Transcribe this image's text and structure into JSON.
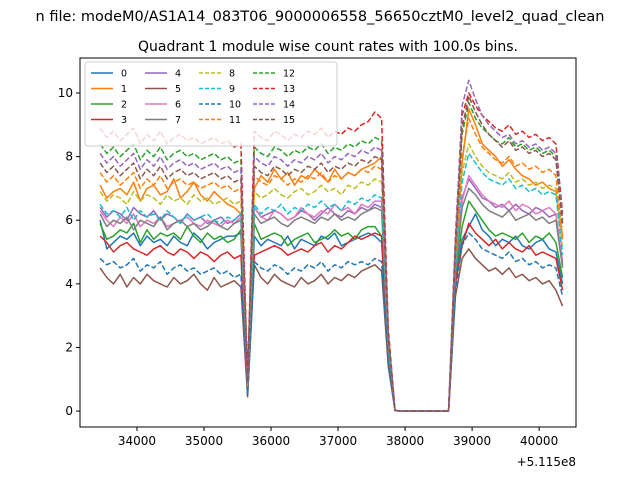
{
  "chart_data": {
    "type": "line",
    "suptitle": "n file: modeM0/AS1A14_083T06_9000006558_56650cztM0_level2_quad_clean",
    "title": "Quadrant 1 module wise count rates with 100.0s bins.",
    "xlabel": "",
    "ylabel": "",
    "offset_label": "+5.115e8",
    "xlim": [
      33150,
      40550
    ],
    "ylim": [
      -0.5,
      11.1
    ],
    "xticks": [
      34000,
      35000,
      36000,
      37000,
      38000,
      39000,
      40000
    ],
    "yticks": [
      0,
      2,
      4,
      6,
      8,
      10
    ],
    "legend_location": "top-left",
    "legend_columns": 4,
    "grid": false,
    "x": [
      33450,
      33550,
      33650,
      33750,
      33850,
      33950,
      34050,
      34150,
      34250,
      34350,
      34450,
      34550,
      34650,
      34750,
      34850,
      34950,
      35050,
      35150,
      35250,
      35350,
      35450,
      35550,
      35650,
      35750,
      35850,
      35950,
      36050,
      36150,
      36250,
      36350,
      36450,
      36550,
      36650,
      36750,
      36850,
      36950,
      37050,
      37150,
      37250,
      37350,
      37450,
      37550,
      37650,
      37750,
      37850,
      37950,
      38050,
      38150,
      38250,
      38350,
      38450,
      38550,
      38650,
      38750,
      38850,
      38950,
      39050,
      39150,
      39250,
      39350,
      39450,
      39550,
      39650,
      39750,
      39850,
      39950,
      40050,
      40150,
      40250,
      40350
    ],
    "series": [
      {
        "name": "0",
        "color": "#1f77b4",
        "dash": false,
        "base": [
          6.0,
          5.1,
          5.3,
          5.5,
          5.4,
          5.6,
          5.2,
          5.5,
          5.3,
          5.4,
          5.2,
          5.5,
          5.3,
          5.2,
          5.6,
          5.4,
          5.1,
          5.3,
          5.4,
          5.5,
          5.5,
          5.6,
          0.5,
          5.5,
          5.2,
          5.4,
          5.3,
          5.2,
          5.5,
          5.1,
          5.4,
          5.3,
          5.2,
          5.5,
          5.4,
          5.6,
          5.2,
          5.3,
          5.4,
          5.5,
          5.6,
          5.5,
          5.3,
          1.8,
          0.02,
          0,
          0,
          0,
          0,
          0,
          0,
          0,
          0,
          4.0,
          5.4,
          5.8,
          6.2,
          5.7,
          5.5,
          5.2,
          5.4,
          5.3,
          5.5,
          5.2,
          5.1,
          5.3,
          5.4,
          5.1,
          5.0,
          4.0
        ]
      },
      {
        "name": "1",
        "color": "#ff7f0e",
        "dash": false,
        "base": [
          7.1,
          6.7,
          6.9,
          7.0,
          6.8,
          7.2,
          6.6,
          7.0,
          7.1,
          6.8,
          6.9,
          7.3,
          6.7,
          6.9,
          7.2,
          6.8,
          6.6,
          6.9,
          6.7,
          6.5,
          6.4,
          6.2,
          0.8,
          7.0,
          7.4,
          7.2,
          7.6,
          7.3,
          7.5,
          7.1,
          7.4,
          7.3,
          7.6,
          7.4,
          7.2,
          7.6,
          7.3,
          7.5,
          7.4,
          7.6,
          7.7,
          7.8,
          8.0,
          2.0,
          0.02,
          0,
          0,
          0,
          0,
          0,
          0,
          0,
          0,
          4.5,
          7.8,
          9.5,
          9.0,
          8.4,
          8.2,
          8.0,
          7.7,
          7.9,
          7.6,
          7.4,
          7.3,
          7.1,
          7.2,
          7.0,
          6.9,
          5.5
        ]
      },
      {
        "name": "2",
        "color": "#2ca02c",
        "dash": false,
        "base": [
          5.9,
          5.4,
          5.5,
          5.7,
          5.6,
          5.9,
          5.3,
          5.7,
          5.4,
          5.6,
          5.5,
          5.6,
          5.4,
          5.8,
          5.5,
          5.3,
          5.6,
          5.4,
          5.5,
          5.3,
          5.4,
          5.7,
          0.6,
          5.9,
          5.4,
          5.5,
          5.6,
          5.5,
          5.2,
          5.4,
          5.5,
          5.6,
          5.3,
          5.4,
          5.5,
          5.7,
          5.5,
          5.6,
          5.4,
          5.7,
          5.8,
          5.8,
          5.5,
          1.9,
          0.02,
          0,
          0,
          0,
          0,
          0,
          0,
          0,
          0,
          4.2,
          5.8,
          6.6,
          6.3,
          6.0,
          5.7,
          5.5,
          5.6,
          5.5,
          5.4,
          5.6,
          5.3,
          5.5,
          5.4,
          5.6,
          5.3,
          4.2
        ]
      },
      {
        "name": "3",
        "color": "#d62728",
        "dash": false,
        "base": [
          5.5,
          5.3,
          5.0,
          5.2,
          5.3,
          5.1,
          5.0,
          4.9,
          5.1,
          5.2,
          5.0,
          4.9,
          5.1,
          5.0,
          4.8,
          5.0,
          4.9,
          4.7,
          4.9,
          5.0,
          4.8,
          4.9,
          0.5,
          4.9,
          5.0,
          5.1,
          5.2,
          5.1,
          4.9,
          5.0,
          5.1,
          5.0,
          5.2,
          5.3,
          5.0,
          5.2,
          5.1,
          5.3,
          5.5,
          5.4,
          5.5,
          5.6,
          5.5,
          1.7,
          0.02,
          0,
          0,
          0,
          0,
          0,
          0,
          0,
          0,
          4.0,
          5.2,
          5.9,
          5.6,
          5.4,
          5.2,
          5.4,
          5.1,
          5.3,
          5.1,
          5.0,
          5.2,
          4.9,
          5.0,
          4.9,
          4.8,
          3.8
        ]
      },
      {
        "name": "4",
        "color": "#9467bd",
        "dash": false,
        "base": [
          6.4,
          6.1,
          6.3,
          6.2,
          6.0,
          6.4,
          6.2,
          6.1,
          6.3,
          6.0,
          6.2,
          6.1,
          5.9,
          6.2,
          6.0,
          6.1,
          5.9,
          6.0,
          6.1,
          5.9,
          6.0,
          6.2,
          0.7,
          6.4,
          6.1,
          6.2,
          6.3,
          6.2,
          6.0,
          6.1,
          6.3,
          6.2,
          6.0,
          6.2,
          6.4,
          6.2,
          6.1,
          6.3,
          6.2,
          6.4,
          6.3,
          6.5,
          6.4,
          2.0,
          0.02,
          0,
          0,
          0,
          0,
          0,
          0,
          0,
          0,
          4.4,
          6.7,
          7.3,
          7.0,
          6.7,
          6.6,
          6.4,
          6.5,
          6.3,
          6.5,
          6.3,
          6.2,
          6.4,
          6.3,
          6.1,
          6.2,
          4.6
        ]
      },
      {
        "name": "5",
        "color": "#8c564b",
        "dash": false,
        "base": [
          4.5,
          4.2,
          4.0,
          4.3,
          3.9,
          4.2,
          4.0,
          4.3,
          4.1,
          4.0,
          3.9,
          4.2,
          4.0,
          4.1,
          4.3,
          4.0,
          3.8,
          4.2,
          3.9,
          4.0,
          4.1,
          3.9,
          0.45,
          4.6,
          4.2,
          4.0,
          4.3,
          4.1,
          4.0,
          3.9,
          4.2,
          4.0,
          4.1,
          4.3,
          4.0,
          4.2,
          4.1,
          4.3,
          4.2,
          4.4,
          4.5,
          4.6,
          4.4,
          1.4,
          0.02,
          0,
          0,
          0,
          0,
          0,
          0,
          0,
          0,
          3.6,
          4.8,
          5.1,
          4.8,
          4.6,
          4.4,
          4.5,
          4.3,
          4.5,
          4.2,
          4.3,
          4.1,
          4.2,
          4.0,
          4.1,
          3.8,
          3.3
        ]
      },
      {
        "name": "6",
        "color": "#e377c2",
        "dash": false,
        "base": [
          6.3,
          6.0,
          5.8,
          6.1,
          5.9,
          6.2,
          5.8,
          6.0,
          5.9,
          6.1,
          5.8,
          5.9,
          6.0,
          6.1,
          5.9,
          5.8,
          6.0,
          5.9,
          5.8,
          6.0,
          5.9,
          6.1,
          0.7,
          6.4,
          6.1,
          6.0,
          6.3,
          6.2,
          6.0,
          6.1,
          6.4,
          6.2,
          6.1,
          6.3,
          6.2,
          6.5,
          6.3,
          6.4,
          6.2,
          6.5,
          6.4,
          6.6,
          6.6,
          2.0,
          0.02,
          0,
          0,
          0,
          0,
          0,
          0,
          0,
          0,
          4.4,
          6.6,
          7.4,
          7.1,
          6.8,
          6.6,
          6.5,
          6.4,
          6.6,
          6.3,
          6.5,
          6.4,
          6.2,
          6.3,
          6.4,
          6.2,
          4.7
        ]
      },
      {
        "name": "7",
        "color": "#7f7f7f",
        "dash": false,
        "base": [
          6.2,
          5.8,
          6.0,
          5.9,
          6.1,
          5.7,
          6.0,
          5.9,
          5.8,
          6.1,
          5.7,
          5.9,
          6.0,
          5.8,
          5.9,
          5.7,
          5.8,
          6.0,
          5.8,
          5.7,
          5.9,
          6.0,
          0.6,
          6.2,
          5.9,
          6.0,
          6.1,
          5.9,
          5.8,
          6.0,
          6.1,
          6.0,
          5.9,
          6.1,
          6.0,
          6.2,
          6.0,
          6.1,
          6.0,
          6.2,
          6.3,
          6.4,
          6.3,
          1.9,
          0.02,
          0,
          0,
          0,
          0,
          0,
          0,
          0,
          0,
          4.3,
          6.4,
          7.0,
          6.8,
          6.5,
          6.3,
          6.2,
          6.1,
          6.3,
          6.0,
          6.1,
          6.2,
          6.0,
          6.1,
          5.9,
          6.0,
          4.5
        ]
      },
      {
        "name": "8",
        "color": "#bcbd22",
        "dash": true,
        "base": [
          6.9,
          6.6,
          6.8,
          6.7,
          6.5,
          6.9,
          6.6,
          6.8,
          6.7,
          6.5,
          6.8,
          6.6,
          6.7,
          6.5,
          6.8,
          6.6,
          6.7,
          6.5,
          6.6,
          6.7,
          6.5,
          6.6,
          0.8,
          6.9,
          6.7,
          6.8,
          7.0,
          6.8,
          6.7,
          6.9,
          7.0,
          6.8,
          6.9,
          7.1,
          6.9,
          7.0,
          6.8,
          7.1,
          7.0,
          7.2,
          7.1,
          7.3,
          7.2,
          2.1,
          0.02,
          0,
          0,
          0,
          0,
          0,
          0,
          0,
          0,
          4.6,
          7.5,
          8.4,
          8.0,
          7.7,
          7.5,
          7.4,
          7.3,
          7.5,
          7.2,
          7.3,
          7.1,
          7.2,
          7.0,
          7.1,
          7.0,
          5.1
        ]
      },
      {
        "name": "9",
        "color": "#17becf",
        "dash": true,
        "base": [
          6.5,
          6.2,
          6.3,
          6.1,
          6.4,
          6.0,
          6.3,
          6.1,
          6.2,
          6.0,
          6.3,
          6.1,
          5.9,
          6.2,
          6.0,
          6.1,
          6.2,
          6.0,
          5.9,
          6.1,
          6.0,
          6.2,
          0.7,
          6.5,
          6.2,
          6.4,
          6.3,
          6.5,
          6.2,
          6.4,
          6.3,
          6.5,
          6.4,
          6.6,
          6.4,
          6.5,
          6.3,
          6.6,
          6.5,
          6.7,
          6.6,
          6.8,
          6.7,
          2.0,
          0.02,
          0,
          0,
          0,
          0,
          0,
          0,
          0,
          0,
          4.5,
          7.2,
          8.1,
          7.8,
          7.5,
          7.3,
          7.2,
          7.1,
          7.3,
          7.0,
          7.1,
          6.9,
          7.0,
          6.8,
          6.9,
          6.8,
          4.9
        ]
      },
      {
        "name": "10",
        "color": "#1f77b4",
        "dash": true,
        "base": [
          4.8,
          4.6,
          4.7,
          4.5,
          4.6,
          4.8,
          4.4,
          4.6,
          4.5,
          4.7,
          4.3,
          4.5,
          4.6,
          4.4,
          4.5,
          4.3,
          4.4,
          4.5,
          4.3,
          4.4,
          4.2,
          4.3,
          0.5,
          4.7,
          4.5,
          4.4,
          4.6,
          4.5,
          4.3,
          4.5,
          4.4,
          4.6,
          4.5,
          4.7,
          4.4,
          4.6,
          4.5,
          4.7,
          4.6,
          4.7,
          4.6,
          4.8,
          4.7,
          1.5,
          0.02,
          0,
          0,
          0,
          0,
          0,
          0,
          0,
          0,
          3.8,
          5.2,
          5.6,
          5.4,
          5.1,
          5.0,
          4.9,
          4.8,
          5.0,
          4.7,
          4.8,
          4.6,
          4.7,
          4.5,
          4.6,
          4.5,
          3.6
        ]
      },
      {
        "name": "11",
        "color": "#ff7f0e",
        "dash": true,
        "base": [
          7.5,
          7.2,
          7.4,
          7.1,
          7.3,
          7.5,
          7.0,
          7.3,
          7.1,
          7.4,
          7.0,
          7.2,
          7.3,
          7.1,
          7.2,
          7.0,
          7.1,
          7.2,
          7.0,
          7.1,
          6.9,
          7.0,
          0.8,
          7.4,
          7.2,
          7.1,
          7.4,
          7.3,
          7.1,
          7.3,
          7.2,
          7.4,
          7.3,
          7.5,
          7.2,
          7.4,
          7.3,
          7.5,
          7.4,
          7.6,
          7.5,
          7.7,
          7.6,
          2.2,
          0.02,
          0,
          0,
          0,
          0,
          0,
          0,
          0,
          0,
          4.8,
          8.0,
          9.2,
          8.7,
          8.3,
          8.1,
          7.9,
          7.8,
          8.0,
          7.7,
          7.8,
          7.6,
          7.7,
          7.5,
          7.6,
          7.4,
          5.4
        ]
      },
      {
        "name": "12",
        "color": "#2ca02c",
        "dash": true,
        "base": [
          8.4,
          8.1,
          8.3,
          8.0,
          8.2,
          8.4,
          7.9,
          8.2,
          8.0,
          8.3,
          7.9,
          8.1,
          8.2,
          8.0,
          8.1,
          7.9,
          8.0,
          8.1,
          7.9,
          8.0,
          7.8,
          7.9,
          0.9,
          8.3,
          8.1,
          8.0,
          8.3,
          8.2,
          8.0,
          8.2,
          8.1,
          8.3,
          8.2,
          8.4,
          8.1,
          8.3,
          8.2,
          8.4,
          8.3,
          8.5,
          8.4,
          8.6,
          8.5,
          2.4,
          0.02,
          0,
          0,
          0,
          0,
          0,
          0,
          0,
          0,
          5.2,
          8.7,
          9.7,
          9.2,
          8.9,
          8.7,
          8.5,
          8.4,
          8.6,
          8.3,
          8.4,
          8.2,
          8.3,
          8.1,
          8.2,
          8.0,
          5.9
        ]
      },
      {
        "name": "13",
        "color": "#d62728",
        "dash": true,
        "base": [
          8.9,
          8.6,
          8.8,
          8.5,
          8.7,
          8.9,
          8.4,
          8.7,
          8.5,
          8.8,
          8.4,
          8.6,
          8.7,
          8.5,
          8.6,
          8.4,
          8.5,
          8.6,
          8.4,
          8.5,
          8.3,
          8.4,
          1.0,
          8.8,
          8.6,
          8.5,
          8.8,
          8.7,
          8.5,
          8.7,
          8.6,
          8.8,
          8.7,
          8.9,
          8.6,
          8.8,
          8.7,
          8.9,
          8.8,
          9.0,
          9.1,
          9.4,
          9.2,
          2.6,
          0.02,
          0,
          0,
          0,
          0,
          0,
          0,
          0,
          0,
          5.5,
          9.3,
          10.0,
          9.6,
          9.3,
          9.1,
          8.9,
          8.8,
          9.0,
          8.7,
          8.8,
          8.6,
          8.7,
          8.5,
          8.6,
          8.4,
          6.2
        ]
      },
      {
        "name": "14",
        "color": "#9467bd",
        "dash": true,
        "base": [
          8.1,
          7.8,
          8.0,
          7.7,
          7.9,
          8.1,
          7.6,
          7.9,
          7.7,
          8.0,
          7.6,
          7.8,
          7.9,
          7.7,
          7.8,
          7.6,
          7.7,
          7.8,
          7.6,
          7.7,
          7.5,
          7.6,
          0.9,
          8.0,
          7.8,
          7.7,
          8.0,
          7.9,
          7.7,
          7.9,
          7.8,
          8.0,
          7.9,
          8.1,
          7.8,
          8.0,
          7.9,
          8.1,
          8.0,
          8.2,
          8.1,
          8.3,
          8.2,
          2.4,
          0.02,
          0,
          0,
          0,
          0,
          0,
          0,
          0,
          0,
          5.3,
          9.6,
          10.4,
          9.8,
          9.3,
          9.0,
          8.8,
          8.6,
          8.7,
          8.4,
          8.5,
          8.3,
          8.4,
          8.2,
          8.3,
          8.1,
          6.0
        ]
      },
      {
        "name": "15",
        "color": "#8c564b",
        "dash": true,
        "base": [
          7.8,
          7.5,
          7.7,
          7.4,
          7.6,
          7.8,
          7.3,
          7.6,
          7.4,
          7.7,
          7.3,
          7.5,
          7.6,
          7.4,
          7.5,
          7.3,
          7.4,
          7.5,
          7.3,
          7.4,
          7.2,
          7.3,
          0.9,
          7.7,
          7.5,
          7.4,
          7.7,
          7.6,
          7.4,
          7.6,
          7.5,
          7.7,
          7.6,
          7.8,
          7.5,
          7.7,
          7.6,
          7.8,
          7.7,
          7.9,
          7.8,
          8.0,
          7.9,
          2.3,
          0.02,
          0,
          0,
          0,
          0,
          0,
          0,
          0,
          0,
          5.0,
          8.9,
          9.9,
          9.4,
          9.0,
          8.7,
          8.5,
          8.3,
          8.5,
          8.2,
          8.3,
          8.1,
          8.2,
          8.0,
          8.1,
          7.9,
          5.8
        ]
      }
    ]
  }
}
